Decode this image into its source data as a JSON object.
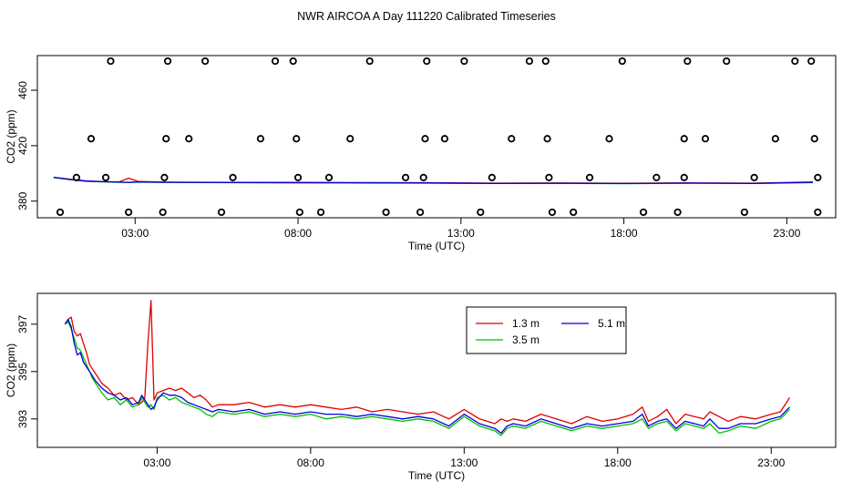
{
  "title": "NWR AIRCOA A  Day 111220  Calibrated Timeseries",
  "colors": {
    "s1": "#e00000",
    "s2": "#00c000",
    "s3": "#0000e0",
    "axis": "#000000"
  },
  "chart_data": [
    {
      "type": "scatter",
      "xlabel": "Time (UTC)",
      "ylabel": "CO2 (ppm)",
      "xlim": [
        0,
        24.5
      ],
      "ylim": [
        368,
        485
      ],
      "xticks": [
        3,
        8,
        13,
        18,
        23
      ],
      "xtick_labels": [
        "03:00",
        "08:00",
        "13:00",
        "18:00",
        "23:00"
      ],
      "yticks": [
        380,
        420,
        460
      ],
      "ytick_labels": [
        "380",
        "420",
        "460"
      ],
      "points": [
        {
          "x": 0.7,
          "y": 372
        },
        {
          "x": 1.65,
          "y": 425
        },
        {
          "x": 2.25,
          "y": 481
        },
        {
          "x": 2.8,
          "y": 372
        },
        {
          "x": 3.85,
          "y": 372
        },
        {
          "x": 3.95,
          "y": 425
        },
        {
          "x": 4.0,
          "y": 481
        },
        {
          "x": 4.65,
          "y": 425
        },
        {
          "x": 5.15,
          "y": 481
        },
        {
          "x": 5.65,
          "y": 372
        },
        {
          "x": 6.85,
          "y": 425
        },
        {
          "x": 7.3,
          "y": 481
        },
        {
          "x": 7.85,
          "y": 481
        },
        {
          "x": 7.95,
          "y": 425
        },
        {
          "x": 8.05,
          "y": 372
        },
        {
          "x": 8.7,
          "y": 372
        },
        {
          "x": 9.6,
          "y": 425
        },
        {
          "x": 10.2,
          "y": 481
        },
        {
          "x": 10.7,
          "y": 372
        },
        {
          "x": 11.75,
          "y": 372
        },
        {
          "x": 11.9,
          "y": 425
        },
        {
          "x": 11.95,
          "y": 481
        },
        {
          "x": 12.5,
          "y": 425
        },
        {
          "x": 13.1,
          "y": 481
        },
        {
          "x": 13.6,
          "y": 372
        },
        {
          "x": 14.55,
          "y": 425
        },
        {
          "x": 15.1,
          "y": 481
        },
        {
          "x": 15.6,
          "y": 481
        },
        {
          "x": 15.65,
          "y": 425
        },
        {
          "x": 15.8,
          "y": 372
        },
        {
          "x": 16.45,
          "y": 372
        },
        {
          "x": 17.55,
          "y": 425
        },
        {
          "x": 17.95,
          "y": 481
        },
        {
          "x": 18.6,
          "y": 372
        },
        {
          "x": 19.65,
          "y": 372
        },
        {
          "x": 19.85,
          "y": 425
        },
        {
          "x": 19.95,
          "y": 481
        },
        {
          "x": 20.5,
          "y": 425
        },
        {
          "x": 21.15,
          "y": 481
        },
        {
          "x": 21.7,
          "y": 372
        },
        {
          "x": 22.65,
          "y": 425
        },
        {
          "x": 23.25,
          "y": 481
        },
        {
          "x": 23.75,
          "y": 481
        },
        {
          "x": 23.85,
          "y": 425
        },
        {
          "x": 23.95,
          "y": 372
        },
        {
          "x": 1.2,
          "y": 397
        },
        {
          "x": 2.1,
          "y": 397
        },
        {
          "x": 3.9,
          "y": 397
        },
        {
          "x": 6.0,
          "y": 397
        },
        {
          "x": 8.0,
          "y": 397
        },
        {
          "x": 8.95,
          "y": 397
        },
        {
          "x": 11.3,
          "y": 397
        },
        {
          "x": 11.85,
          "y": 397
        },
        {
          "x": 13.95,
          "y": 397
        },
        {
          "x": 15.7,
          "y": 397
        },
        {
          "x": 16.95,
          "y": 397
        },
        {
          "x": 19.0,
          "y": 397
        },
        {
          "x": 19.85,
          "y": 397
        },
        {
          "x": 22.0,
          "y": 397
        },
        {
          "x": 23.95,
          "y": 397
        }
      ],
      "series": [
        {
          "color": "#e00000",
          "x": [
            0.5,
            1,
            1.5,
            2,
            2.5,
            2.8,
            3.1,
            4,
            6,
            8,
            10,
            12,
            14,
            16,
            18,
            20,
            22,
            23.8
          ],
          "y": [
            397.2,
            395.8,
            394.6,
            394.1,
            393.8,
            396.5,
            394.2,
            393.7,
            393.6,
            393.5,
            393.4,
            393.3,
            393.0,
            393.1,
            392.9,
            393.2,
            393.0,
            393.8
          ]
        },
        {
          "color": "#00c000",
          "x": [
            0.5,
            1,
            1.5,
            2,
            2.5,
            2.8,
            3.1,
            4,
            6,
            8,
            10,
            12,
            14,
            16,
            18,
            20,
            22,
            23.8
          ],
          "y": [
            397.0,
            395.5,
            394.3,
            393.9,
            393.6,
            393.5,
            393.7,
            393.5,
            393.3,
            393.2,
            393.1,
            393.0,
            392.7,
            392.8,
            392.6,
            392.9,
            392.7,
            393.4
          ]
        },
        {
          "color": "#0000e0",
          "x": [
            0.5,
            1,
            1.5,
            2,
            2.5,
            2.8,
            3.1,
            4,
            6,
            8,
            10,
            12,
            14,
            16,
            18,
            20,
            22,
            23.8
          ],
          "y": [
            397.1,
            395.6,
            394.4,
            394.0,
            393.7,
            393.5,
            393.8,
            393.6,
            393.4,
            393.3,
            393.2,
            393.1,
            392.8,
            392.9,
            392.7,
            393.0,
            392.8,
            393.6
          ]
        }
      ]
    },
    {
      "type": "line",
      "xlabel": "Time (UTC)",
      "ylabel": "CO2 (ppm)",
      "xlim": [
        -0.9,
        25.1
      ],
      "ylim": [
        391.8,
        398.3
      ],
      "xticks": [
        3,
        8,
        13,
        18,
        23
      ],
      "xtick_labels": [
        "03:00",
        "08:00",
        "13:00",
        "18:00",
        "23:00"
      ],
      "yticks": [
        393,
        395,
        397
      ],
      "ytick_labels": [
        "393",
        "395",
        "397"
      ],
      "legend": {
        "position": "top-right"
      },
      "series": [
        {
          "name": "1.3 m",
          "color": "#e00000",
          "x": [
            0.0,
            0.1,
            0.2,
            0.3,
            0.4,
            0.5,
            0.6,
            0.7,
            0.8,
            0.9,
            1.0,
            1.2,
            1.4,
            1.6,
            1.8,
            2.0,
            2.2,
            2.4,
            2.5,
            2.6,
            2.7,
            2.8,
            2.9,
            3.0,
            3.2,
            3.4,
            3.6,
            3.8,
            4.0,
            4.2,
            4.4,
            4.6,
            4.8,
            5.0,
            5.5,
            6.0,
            6.5,
            7.0,
            7.5,
            8.0,
            8.5,
            9.0,
            9.5,
            10.0,
            10.5,
            11.0,
            11.5,
            12.0,
            12.5,
            13.0,
            13.5,
            14.0,
            14.2,
            14.4,
            14.6,
            15.0,
            15.5,
            16.0,
            16.5,
            17.0,
            17.5,
            18.0,
            18.5,
            18.8,
            19.0,
            19.3,
            19.6,
            19.9,
            20.2,
            20.5,
            20.8,
            21.0,
            21.3,
            21.6,
            22.0,
            22.5,
            23.0,
            23.3,
            23.6
          ],
          "y": [
            397.0,
            397.2,
            397.3,
            396.7,
            396.5,
            396.6,
            396.2,
            395.8,
            395.3,
            395.1,
            394.9,
            394.5,
            394.3,
            394.0,
            394.1,
            393.8,
            393.9,
            393.6,
            393.7,
            393.9,
            396.2,
            398.0,
            393.8,
            394.1,
            394.2,
            394.3,
            394.2,
            394.3,
            394.1,
            393.9,
            394.0,
            393.8,
            393.5,
            393.6,
            393.6,
            393.7,
            393.5,
            393.6,
            393.5,
            393.6,
            393.5,
            393.4,
            393.5,
            393.3,
            393.4,
            393.3,
            393.2,
            393.3,
            393.0,
            393.4,
            393.0,
            392.8,
            393.0,
            392.9,
            393.0,
            392.9,
            393.2,
            393.0,
            392.8,
            393.1,
            392.9,
            393.0,
            393.2,
            393.5,
            392.9,
            393.1,
            393.4,
            392.8,
            393.2,
            393.1,
            393.0,
            393.3,
            393.1,
            392.9,
            393.1,
            393.0,
            393.2,
            393.3,
            393.9
          ]
        },
        {
          "name": "3.5 m",
          "color": "#00c000",
          "x": [
            0.0,
            0.1,
            0.2,
            0.3,
            0.4,
            0.5,
            0.6,
            0.7,
            0.8,
            0.9,
            1.0,
            1.2,
            1.4,
            1.6,
            1.8,
            2.0,
            2.2,
            2.4,
            2.5,
            2.6,
            2.7,
            2.8,
            2.9,
            3.0,
            3.2,
            3.4,
            3.6,
            3.8,
            4.0,
            4.2,
            4.4,
            4.6,
            4.8,
            5.0,
            5.5,
            6.0,
            6.5,
            7.0,
            7.5,
            8.0,
            8.5,
            9.0,
            9.5,
            10.0,
            10.5,
            11.0,
            11.5,
            12.0,
            12.5,
            13.0,
            13.5,
            14.0,
            14.2,
            14.4,
            14.6,
            15.0,
            15.5,
            16.0,
            16.5,
            17.0,
            17.5,
            18.0,
            18.5,
            18.8,
            19.0,
            19.3,
            19.6,
            19.9,
            20.2,
            20.5,
            20.8,
            21.0,
            21.3,
            21.6,
            22.0,
            22.5,
            23.0,
            23.3,
            23.6
          ],
          "y": [
            397.0,
            397.1,
            396.8,
            396.4,
            396.0,
            395.9,
            395.6,
            395.3,
            395.0,
            394.7,
            394.5,
            394.1,
            393.8,
            393.9,
            393.6,
            393.8,
            393.5,
            393.6,
            393.9,
            393.7,
            393.5,
            393.6,
            393.4,
            393.9,
            394.0,
            393.8,
            393.9,
            393.7,
            393.6,
            393.5,
            393.4,
            393.2,
            393.1,
            393.3,
            393.2,
            393.3,
            393.1,
            393.2,
            393.1,
            393.2,
            393.0,
            393.1,
            393.0,
            393.1,
            393.0,
            392.9,
            393.0,
            392.9,
            392.6,
            393.1,
            392.7,
            392.5,
            392.3,
            392.6,
            392.7,
            392.6,
            392.9,
            392.7,
            392.5,
            392.7,
            392.6,
            392.7,
            392.8,
            393.0,
            392.6,
            392.8,
            392.9,
            392.5,
            392.8,
            392.7,
            392.6,
            392.8,
            392.4,
            392.5,
            392.7,
            392.6,
            392.9,
            393.0,
            393.4
          ]
        },
        {
          "name": "5.1 m",
          "color": "#0000e0",
          "x": [
            0.0,
            0.1,
            0.2,
            0.3,
            0.4,
            0.5,
            0.6,
            0.7,
            0.8,
            0.9,
            1.0,
            1.2,
            1.4,
            1.6,
            1.8,
            2.0,
            2.2,
            2.4,
            2.5,
            2.6,
            2.7,
            2.8,
            2.9,
            3.0,
            3.2,
            3.4,
            3.6,
            3.8,
            4.0,
            4.2,
            4.4,
            4.6,
            4.8,
            5.0,
            5.5,
            6.0,
            6.5,
            7.0,
            7.5,
            8.0,
            8.5,
            9.0,
            9.5,
            10.0,
            10.5,
            11.0,
            11.5,
            12.0,
            12.5,
            13.0,
            13.5,
            14.0,
            14.2,
            14.4,
            14.6,
            15.0,
            15.5,
            16.0,
            16.5,
            17.0,
            17.5,
            18.0,
            18.5,
            18.8,
            19.0,
            19.3,
            19.6,
            19.9,
            20.2,
            20.5,
            20.8,
            21.0,
            21.3,
            21.6,
            22.0,
            22.5,
            23.0,
            23.3,
            23.6
          ],
          "y": [
            397.0,
            397.2,
            396.9,
            396.2,
            395.7,
            395.8,
            395.4,
            395.2,
            395.0,
            394.8,
            394.6,
            394.3,
            394.1,
            394.0,
            393.8,
            393.9,
            393.6,
            393.7,
            394.0,
            393.8,
            393.6,
            393.4,
            393.5,
            393.8,
            394.1,
            394.0,
            394.0,
            393.9,
            393.7,
            393.6,
            393.5,
            393.4,
            393.3,
            393.4,
            393.3,
            393.4,
            393.2,
            393.3,
            393.2,
            393.3,
            393.2,
            393.2,
            393.1,
            393.2,
            393.1,
            393.0,
            393.1,
            393.0,
            392.7,
            393.2,
            392.8,
            392.6,
            392.4,
            392.7,
            392.8,
            392.7,
            393.0,
            392.8,
            392.6,
            392.8,
            392.7,
            392.8,
            392.9,
            393.2,
            392.7,
            392.9,
            393.0,
            392.6,
            392.9,
            392.8,
            392.7,
            393.0,
            392.6,
            392.6,
            392.8,
            392.8,
            393.0,
            393.1,
            393.5
          ]
        }
      ]
    }
  ]
}
